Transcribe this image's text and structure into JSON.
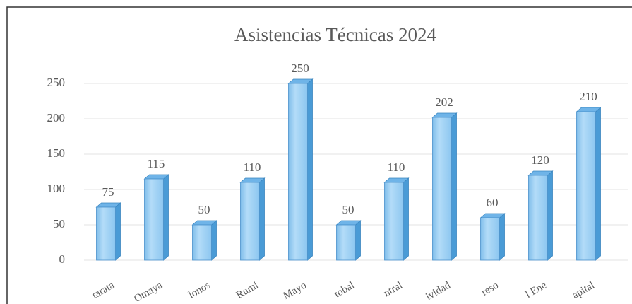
{
  "chart_data": {
    "type": "bar",
    "title": "Asistencias Técnicas 2024",
    "categories": [
      "tarata",
      "Omaya",
      "lonos",
      "Rumi",
      "Mayo",
      "tobal",
      "ntral",
      "ividad",
      "reso",
      "l Ene",
      "apital"
    ],
    "values": [
      75,
      115,
      50,
      110,
      250,
      50,
      110,
      202,
      60,
      120,
      210
    ],
    "color": "#9fd0f5",
    "ylim": [
      0,
      250
    ],
    "yticks": [
      0,
      50,
      100,
      150,
      200,
      250
    ],
    "grid": true
  }
}
